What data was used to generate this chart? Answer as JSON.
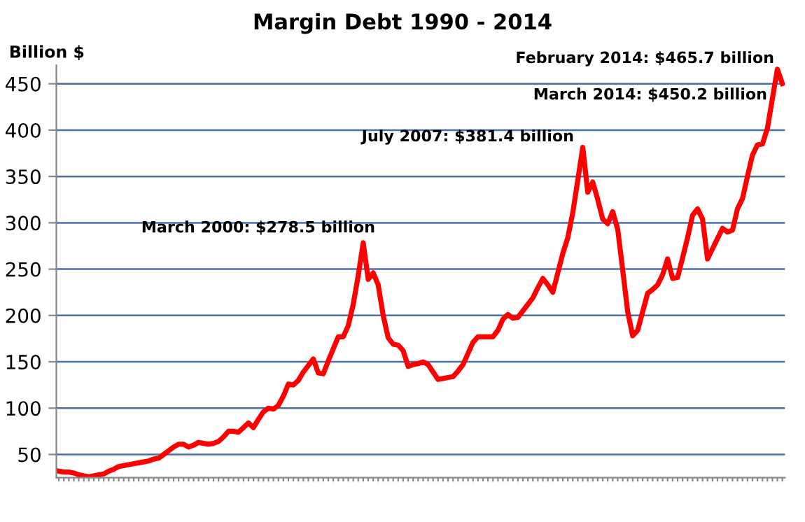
{
  "chart_data": {
    "type": "line",
    "title": "Margin Debt 1990 - 2014",
    "ylabel": "Billion $",
    "categories": [
      null,
      null,
      null,
      null,
      null,
      null,
      null,
      null,
      null,
      null,
      null,
      null,
      null,
      null,
      null,
      null,
      null,
      null,
      null,
      null,
      null,
      null,
      null,
      null,
      null,
      null,
      null,
      null,
      null,
      null,
      null,
      null,
      null,
      null,
      null,
      null,
      null,
      null,
      null,
      null,
      null,
      null,
      null,
      null,
      null,
      null,
      null,
      null,
      null,
      null,
      null,
      null,
      null,
      null,
      null,
      null,
      null,
      null,
      null,
      null,
      null,
      null,
      null,
      null,
      null,
      null,
      null,
      null,
      null,
      null,
      null,
      null,
      null,
      null,
      null,
      null,
      null,
      null,
      null,
      null,
      null,
      null,
      null,
      null,
      null,
      null,
      null,
      null,
      null,
      null,
      null,
      null,
      null,
      null,
      null,
      null,
      null,
      null,
      null,
      null,
      null,
      null,
      null,
      null,
      null,
      null,
      null,
      null,
      null,
      null,
      null,
      null,
      null,
      null,
      null,
      null,
      null,
      null,
      null,
      null,
      null,
      null,
      null,
      null,
      null,
      null,
      null,
      null,
      null,
      null,
      null,
      null,
      null,
      null,
      null,
      null,
      null,
      null,
      null,
      null,
      null,
      null,
      null,
      null,
      null,
      null
    ],
    "series": [
      {
        "color": "#ff0000",
        "values": [
          32,
          31,
          31,
          30,
          28,
          27,
          26,
          27,
          28,
          29,
          32,
          34,
          37,
          38,
          39,
          40,
          41,
          42,
          43,
          45,
          46,
          50,
          54,
          58,
          61,
          61,
          58,
          60,
          63,
          62,
          61,
          62,
          64,
          69,
          75,
          75,
          74,
          79,
          84,
          79,
          88,
          96,
          100,
          99,
          103,
          113,
          126,
          125,
          130,
          139,
          146,
          153,
          138,
          137,
          151,
          164,
          177,
          177,
          189,
          212,
          243,
          278.5,
          239,
          246,
          233,
          200,
          176,
          169,
          168,
          162,
          145,
          147,
          148,
          150,
          147,
          139,
          131,
          132,
          133,
          134,
          140,
          147,
          159,
          171,
          177,
          177,
          177,
          177,
          184,
          196,
          201,
          197,
          198,
          205,
          212,
          219,
          230,
          240,
          233,
          225,
          246,
          267,
          284,
          311,
          346,
          381.4,
          333,
          344,
          325,
          304,
          299,
          312,
          293,
          249,
          204,
          178,
          184,
          204,
          224,
          228,
          233,
          244,
          261,
          240,
          241,
          262,
          284,
          308,
          315,
          304,
          261,
          272,
          283,
          294,
          290,
          292,
          315,
          326,
          350,
          373,
          384,
          385,
          402,
          434,
          465.7,
          450.2
        ]
      }
    ],
    "ylim": [
      25,
      470
    ],
    "yticks": [
      50,
      100,
      150,
      200,
      250,
      300,
      350,
      400,
      450
    ],
    "grid": "y",
    "tick_labels": "y",
    "marker": "none",
    "line_style": "solid",
    "annotations": [
      "March 2000: $278.5 billion",
      "July 2007: $381.4 billion",
      "February 2014: $465.7 billion",
      "March 2014: $450.2 billion"
    ]
  }
}
